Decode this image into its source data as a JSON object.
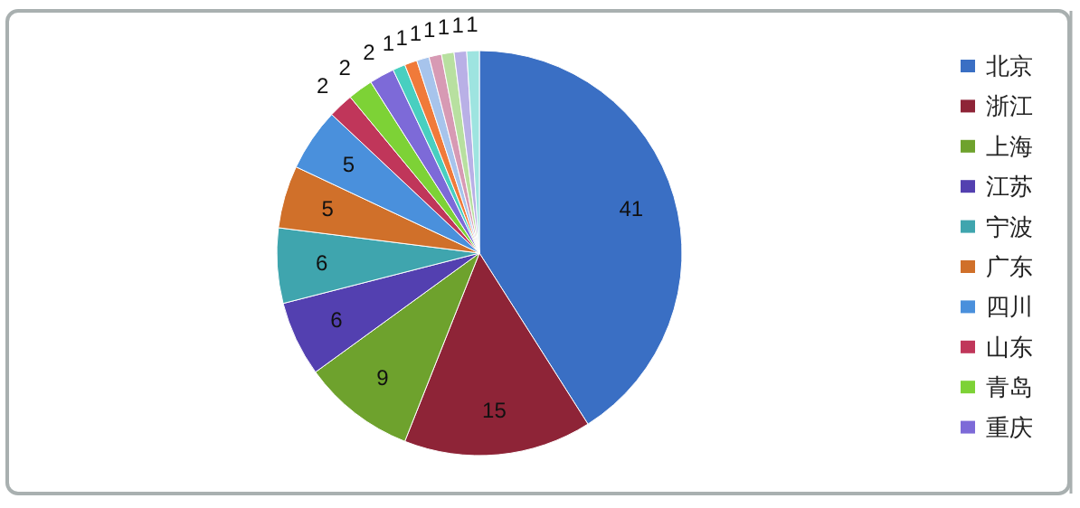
{
  "chart_data": {
    "type": "pie",
    "legend": "right",
    "data_labels": true,
    "categories": [
      "北京",
      "浙江",
      "上海",
      "江苏",
      "宁波",
      "广东",
      "四川",
      "山东",
      "青岛",
      "重庆",
      null,
      null,
      null,
      null,
      null,
      null,
      null
    ],
    "values": [
      41,
      15,
      9,
      6,
      6,
      5,
      5,
      2,
      2,
      2,
      1,
      1,
      1,
      1,
      1,
      1,
      1
    ],
    "colors": [
      "#3a6fc4",
      "#8e2437",
      "#6ea22d",
      "#5340b0",
      "#3fa5ae",
      "#d0702a",
      "#4a90dc",
      "#c0365a",
      "#7dd236",
      "#7d6ad8",
      "#48cfc0",
      "#f07a3a",
      "#a7c4ec",
      "#d79ab4",
      "#b8e0a0",
      "#b9b0e6",
      "#9ee4e0"
    ]
  }
}
